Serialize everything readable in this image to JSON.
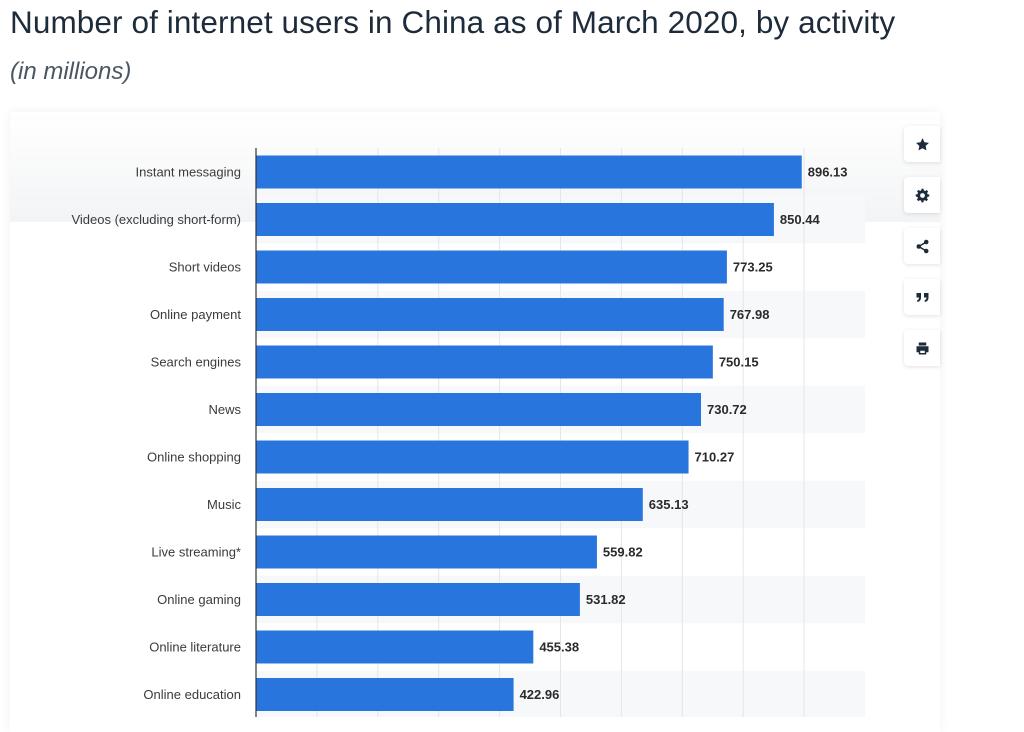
{
  "header": {
    "title": "Number of internet users in China as of March 2020, by activity",
    "subtitle": "(in millions)"
  },
  "toolbar": [
    {
      "name": "star-icon",
      "label": "Favorite"
    },
    {
      "name": "gear-icon",
      "label": "Settings"
    },
    {
      "name": "share-icon",
      "label": "Share"
    },
    {
      "name": "quote-icon",
      "label": "Cite"
    },
    {
      "name": "print-icon",
      "label": "Print"
    }
  ],
  "colors": {
    "bar": "#2876dd",
    "grid": "#e3e6ea",
    "axis": "#333333"
  },
  "chart_data": {
    "type": "bar",
    "orientation": "horizontal",
    "title": "Number of internet users in China as of March 2020, by activity",
    "subtitle": "(in millions)",
    "xlim": [
      0,
      1000
    ],
    "grid": true,
    "categories": [
      "Instant messaging",
      "Videos (excluding short-form)",
      "Short videos",
      "Online payment",
      "Search engines",
      "News",
      "Online shopping",
      "Music",
      "Live streaming*",
      "Online gaming",
      "Online literature",
      "Online education"
    ],
    "values": [
      896.13,
      850.44,
      773.25,
      767.98,
      750.15,
      730.72,
      710.27,
      635.13,
      559.82,
      531.82,
      455.38,
      422.96
    ],
    "value_labels": [
      "896.13",
      "850.44",
      "773.25",
      "767.98",
      "750.15",
      "730.72",
      "710.27",
      "635.13",
      "559.82",
      "531.82",
      "455.38",
      "422.96"
    ]
  }
}
